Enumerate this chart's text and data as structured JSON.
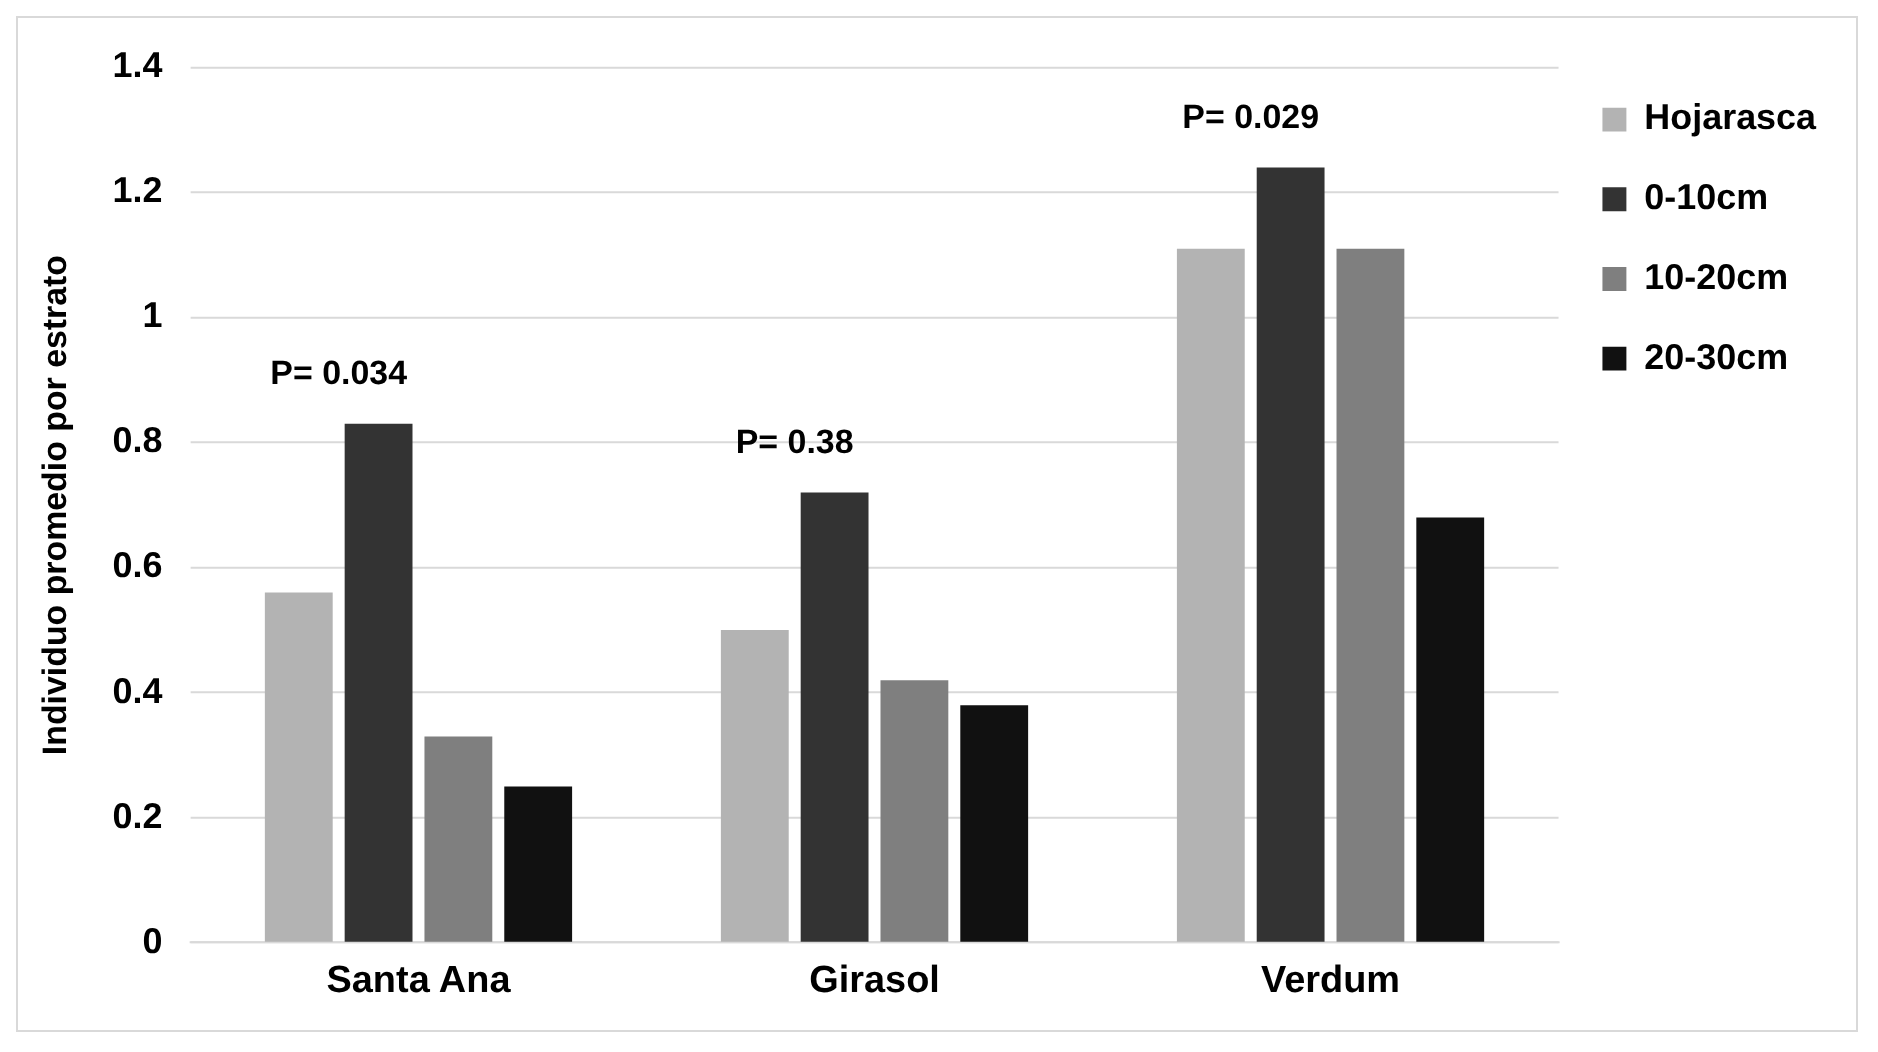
{
  "chart_data": {
    "type": "bar",
    "ylabel": "Individuo promedio por estrato",
    "categories": [
      "Santa Ana",
      "Girasol",
      "Verdum"
    ],
    "series": [
      {
        "name": "Hojarasca",
        "color": "#b3b3b3",
        "values": [
          0.56,
          0.5,
          1.11
        ]
      },
      {
        "name": "0-10cm",
        "color": "#333333",
        "values": [
          0.83,
          0.72,
          1.24
        ]
      },
      {
        "name": "10-20cm",
        "color": "#7f7f7f",
        "values": [
          0.33,
          0.42,
          1.11
        ]
      },
      {
        "name": "20-30cm",
        "color": "#111111",
        "values": [
          0.25,
          0.38,
          0.68
        ]
      }
    ],
    "ylim": [
      0,
      1.4
    ],
    "yticks": [
      0,
      0.2,
      0.4,
      0.6,
      0.8,
      1,
      1.2,
      1.4
    ],
    "grid": "y",
    "legend": "right",
    "annotations": [
      "P= 0.034",
      "P= 0.38",
      "P= 0.029"
    ]
  }
}
